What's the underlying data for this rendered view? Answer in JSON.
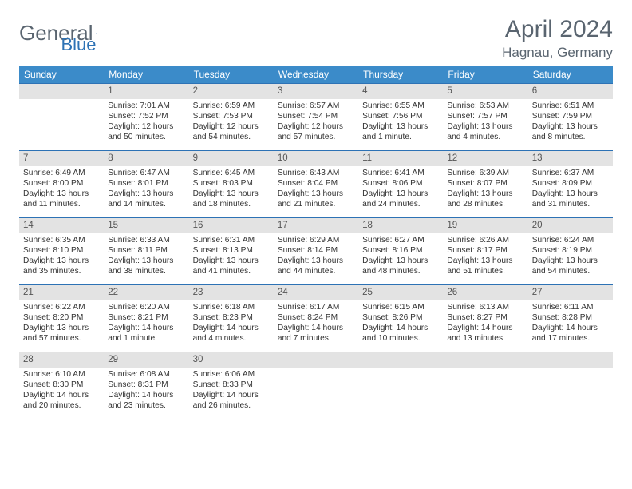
{
  "logo": {
    "text1": "General",
    "text2": "Blue"
  },
  "title": "April 2024",
  "location": "Hagnau, Germany",
  "columns": [
    "Sunday",
    "Monday",
    "Tuesday",
    "Wednesday",
    "Thursday",
    "Friday",
    "Saturday"
  ],
  "colors": {
    "header_bg": "#3b8bc9",
    "border": "#2d72b5",
    "daynum_bg": "#e3e3e3",
    "title_color": "#5a6570"
  },
  "weeks": [
    [
      {
        "n": "",
        "lines": []
      },
      {
        "n": "1",
        "lines": [
          "Sunrise: 7:01 AM",
          "Sunset: 7:52 PM",
          "Daylight: 12 hours",
          "and 50 minutes."
        ]
      },
      {
        "n": "2",
        "lines": [
          "Sunrise: 6:59 AM",
          "Sunset: 7:53 PM",
          "Daylight: 12 hours",
          "and 54 minutes."
        ]
      },
      {
        "n": "3",
        "lines": [
          "Sunrise: 6:57 AM",
          "Sunset: 7:54 PM",
          "Daylight: 12 hours",
          "and 57 minutes."
        ]
      },
      {
        "n": "4",
        "lines": [
          "Sunrise: 6:55 AM",
          "Sunset: 7:56 PM",
          "Daylight: 13 hours",
          "and 1 minute."
        ]
      },
      {
        "n": "5",
        "lines": [
          "Sunrise: 6:53 AM",
          "Sunset: 7:57 PM",
          "Daylight: 13 hours",
          "and 4 minutes."
        ]
      },
      {
        "n": "6",
        "lines": [
          "Sunrise: 6:51 AM",
          "Sunset: 7:59 PM",
          "Daylight: 13 hours",
          "and 8 minutes."
        ]
      }
    ],
    [
      {
        "n": "7",
        "lines": [
          "Sunrise: 6:49 AM",
          "Sunset: 8:00 PM",
          "Daylight: 13 hours",
          "and 11 minutes."
        ]
      },
      {
        "n": "8",
        "lines": [
          "Sunrise: 6:47 AM",
          "Sunset: 8:01 PM",
          "Daylight: 13 hours",
          "and 14 minutes."
        ]
      },
      {
        "n": "9",
        "lines": [
          "Sunrise: 6:45 AM",
          "Sunset: 8:03 PM",
          "Daylight: 13 hours",
          "and 18 minutes."
        ]
      },
      {
        "n": "10",
        "lines": [
          "Sunrise: 6:43 AM",
          "Sunset: 8:04 PM",
          "Daylight: 13 hours",
          "and 21 minutes."
        ]
      },
      {
        "n": "11",
        "lines": [
          "Sunrise: 6:41 AM",
          "Sunset: 8:06 PM",
          "Daylight: 13 hours",
          "and 24 minutes."
        ]
      },
      {
        "n": "12",
        "lines": [
          "Sunrise: 6:39 AM",
          "Sunset: 8:07 PM",
          "Daylight: 13 hours",
          "and 28 minutes."
        ]
      },
      {
        "n": "13",
        "lines": [
          "Sunrise: 6:37 AM",
          "Sunset: 8:09 PM",
          "Daylight: 13 hours",
          "and 31 minutes."
        ]
      }
    ],
    [
      {
        "n": "14",
        "lines": [
          "Sunrise: 6:35 AM",
          "Sunset: 8:10 PM",
          "Daylight: 13 hours",
          "and 35 minutes."
        ]
      },
      {
        "n": "15",
        "lines": [
          "Sunrise: 6:33 AM",
          "Sunset: 8:11 PM",
          "Daylight: 13 hours",
          "and 38 minutes."
        ]
      },
      {
        "n": "16",
        "lines": [
          "Sunrise: 6:31 AM",
          "Sunset: 8:13 PM",
          "Daylight: 13 hours",
          "and 41 minutes."
        ]
      },
      {
        "n": "17",
        "lines": [
          "Sunrise: 6:29 AM",
          "Sunset: 8:14 PM",
          "Daylight: 13 hours",
          "and 44 minutes."
        ]
      },
      {
        "n": "18",
        "lines": [
          "Sunrise: 6:27 AM",
          "Sunset: 8:16 PM",
          "Daylight: 13 hours",
          "and 48 minutes."
        ]
      },
      {
        "n": "19",
        "lines": [
          "Sunrise: 6:26 AM",
          "Sunset: 8:17 PM",
          "Daylight: 13 hours",
          "and 51 minutes."
        ]
      },
      {
        "n": "20",
        "lines": [
          "Sunrise: 6:24 AM",
          "Sunset: 8:19 PM",
          "Daylight: 13 hours",
          "and 54 minutes."
        ]
      }
    ],
    [
      {
        "n": "21",
        "lines": [
          "Sunrise: 6:22 AM",
          "Sunset: 8:20 PM",
          "Daylight: 13 hours",
          "and 57 minutes."
        ]
      },
      {
        "n": "22",
        "lines": [
          "Sunrise: 6:20 AM",
          "Sunset: 8:21 PM",
          "Daylight: 14 hours",
          "and 1 minute."
        ]
      },
      {
        "n": "23",
        "lines": [
          "Sunrise: 6:18 AM",
          "Sunset: 8:23 PM",
          "Daylight: 14 hours",
          "and 4 minutes."
        ]
      },
      {
        "n": "24",
        "lines": [
          "Sunrise: 6:17 AM",
          "Sunset: 8:24 PM",
          "Daylight: 14 hours",
          "and 7 minutes."
        ]
      },
      {
        "n": "25",
        "lines": [
          "Sunrise: 6:15 AM",
          "Sunset: 8:26 PM",
          "Daylight: 14 hours",
          "and 10 minutes."
        ]
      },
      {
        "n": "26",
        "lines": [
          "Sunrise: 6:13 AM",
          "Sunset: 8:27 PM",
          "Daylight: 14 hours",
          "and 13 minutes."
        ]
      },
      {
        "n": "27",
        "lines": [
          "Sunrise: 6:11 AM",
          "Sunset: 8:28 PM",
          "Daylight: 14 hours",
          "and 17 minutes."
        ]
      }
    ],
    [
      {
        "n": "28",
        "lines": [
          "Sunrise: 6:10 AM",
          "Sunset: 8:30 PM",
          "Daylight: 14 hours",
          "and 20 minutes."
        ]
      },
      {
        "n": "29",
        "lines": [
          "Sunrise: 6:08 AM",
          "Sunset: 8:31 PM",
          "Daylight: 14 hours",
          "and 23 minutes."
        ]
      },
      {
        "n": "30",
        "lines": [
          "Sunrise: 6:06 AM",
          "Sunset: 8:33 PM",
          "Daylight: 14 hours",
          "and 26 minutes."
        ]
      },
      {
        "n": "",
        "lines": []
      },
      {
        "n": "",
        "lines": []
      },
      {
        "n": "",
        "lines": []
      },
      {
        "n": "",
        "lines": []
      }
    ]
  ]
}
